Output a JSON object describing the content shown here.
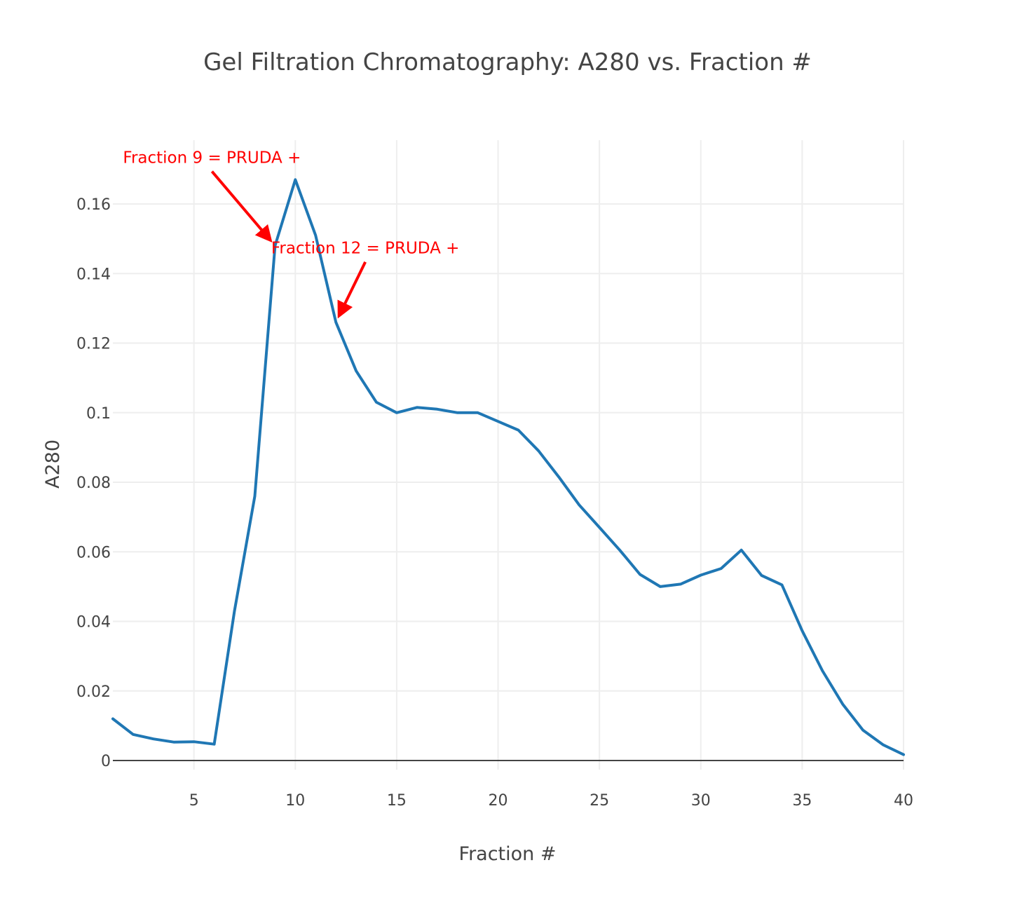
{
  "chart_data": {
    "type": "line",
    "title": "Gel Filtration Chromatography: A280 vs. Fraction #",
    "xlabel": "Fraction #",
    "ylabel": "A280",
    "xlim": [
      1,
      40
    ],
    "ylim": [
      -0.005,
      0.178
    ],
    "x_ticks": [
      "5",
      "10",
      "15",
      "20",
      "25",
      "30",
      "35",
      "40"
    ],
    "y_ticks": [
      "0",
      "0.02",
      "0.04",
      "0.06",
      "0.08",
      "0.1",
      "0.12",
      "0.14",
      "0.16"
    ],
    "grid": true,
    "legend": false,
    "series": [
      {
        "color": "#1f77b4",
        "x": [
          1,
          2,
          3,
          4,
          5,
          6,
          7,
          8,
          9,
          10,
          11,
          12,
          13,
          14,
          15,
          16,
          17,
          18,
          19,
          20,
          21,
          22,
          23,
          24,
          25,
          26,
          27,
          28,
          29,
          30,
          31,
          32,
          33,
          34,
          35,
          36,
          37,
          38,
          39,
          40
        ],
        "y": [
          0.012,
          0.0075,
          0.0062,
          0.0053,
          0.0054,
          0.0047,
          0.043,
          0.076,
          0.148,
          0.167,
          0.151,
          0.126,
          0.112,
          0.103,
          0.1,
          0.1015,
          0.101,
          0.1,
          0.1,
          0.0975,
          0.095,
          0.089,
          0.0815,
          0.0735,
          0.067,
          0.0605,
          0.0535,
          0.05,
          0.0507,
          0.0533,
          0.0552,
          0.0605,
          0.0532,
          0.0505,
          0.0373,
          0.0258,
          0.0162,
          0.0087,
          0.0045,
          0.0017
        ]
      }
    ],
    "annotations": [
      {
        "text": "Fraction 9 = PRUDA +",
        "x": 9,
        "y": 0.148,
        "color": "#ff0000"
      },
      {
        "text": "Fraction 12 = PRUDA +",
        "x": 12,
        "y": 0.126,
        "color": "#ff0000"
      }
    ]
  }
}
